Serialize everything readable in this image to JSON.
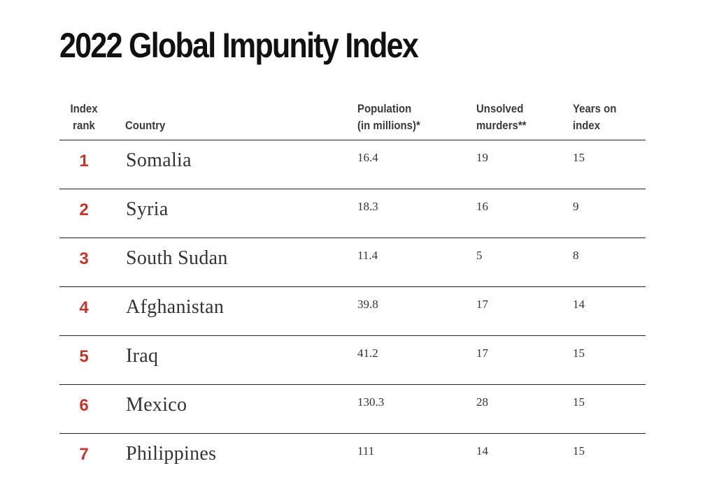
{
  "title": "2022 Global Impunity Index",
  "colors": {
    "rank_accent": "#c0362c",
    "text": "#333333",
    "rule": "#222222"
  },
  "table": {
    "headers": {
      "rank": "Index\nrank",
      "country": "Country",
      "population": "Population\n(in millions)*",
      "murders": "Unsolved\nmurders**",
      "years": "Years on\nindex"
    },
    "rows": [
      {
        "rank": "1",
        "country": "Somalia",
        "population": "16.4",
        "murders": "19",
        "years": "15"
      },
      {
        "rank": "2",
        "country": "Syria",
        "population": "18.3",
        "murders": "16",
        "years": "9"
      },
      {
        "rank": "3",
        "country": "South Sudan",
        "population": "11.4",
        "murders": "5",
        "years": "8"
      },
      {
        "rank": "4",
        "country": "Afghanistan",
        "population": "39.8",
        "murders": "17",
        "years": "14"
      },
      {
        "rank": "5",
        "country": "Iraq",
        "population": "41.2",
        "murders": "17",
        "years": "15"
      },
      {
        "rank": "6",
        "country": "Mexico",
        "population": "130.3",
        "murders": "28",
        "years": "15"
      },
      {
        "rank": "7",
        "country": "Philippines",
        "population": "111",
        "murders": "14",
        "years": "15"
      }
    ]
  }
}
